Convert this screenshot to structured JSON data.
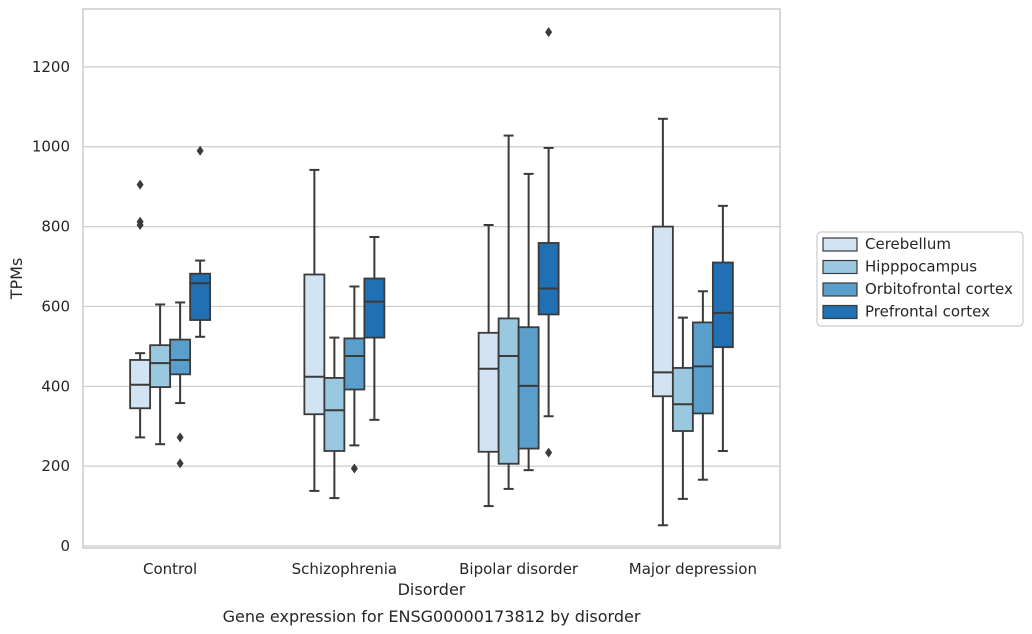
{
  "chart_data": {
    "type": "box",
    "title": "",
    "caption": "Gene expression for ENSG00000173812 by disorder",
    "xlabel": "Disorder",
    "ylabel": "TPMs",
    "ylim": [
      -5,
      1345
    ],
    "yticks": [
      0,
      200,
      400,
      600,
      800,
      1000,
      1200
    ],
    "grid": true,
    "legend_position": "right",
    "categories": [
      "Control",
      "Schizophrenia",
      "Bipolar disorder",
      "Major depression"
    ],
    "series": [
      {
        "name": "Cerebellum",
        "color": "#d2e3f3",
        "boxes": [
          {
            "whisker_low": 272,
            "q1": 345,
            "median": 404,
            "q3": 466,
            "whisker_high": 483,
            "outliers": [
              905,
              812,
              804
            ]
          },
          {
            "whisker_low": 138,
            "q1": 330,
            "median": 424,
            "q3": 680,
            "whisker_high": 942,
            "outliers": []
          },
          {
            "whisker_low": 100,
            "q1": 236,
            "median": 444,
            "q3": 534,
            "whisker_high": 804,
            "outliers": []
          },
          {
            "whisker_low": 52,
            "q1": 375,
            "median": 435,
            "q3": 800,
            "whisker_high": 1070,
            "outliers": []
          }
        ]
      },
      {
        "name": "Hipppocampus",
        "color": "#9ac8e0",
        "boxes": [
          {
            "whisker_low": 255,
            "q1": 398,
            "median": 458,
            "q3": 503,
            "whisker_high": 605,
            "outliers": []
          },
          {
            "whisker_low": 120,
            "q1": 238,
            "median": 340,
            "q3": 421,
            "whisker_high": 522,
            "outliers": []
          },
          {
            "whisker_low": 143,
            "q1": 206,
            "median": 476,
            "q3": 570,
            "whisker_high": 1028,
            "outliers": []
          },
          {
            "whisker_low": 118,
            "q1": 288,
            "median": 355,
            "q3": 446,
            "whisker_high": 572,
            "outliers": []
          }
        ]
      },
      {
        "name": "Orbitofrontal cortex",
        "color": "#5a9ecc",
        "boxes": [
          {
            "whisker_low": 358,
            "q1": 430,
            "median": 466,
            "q3": 517,
            "whisker_high": 610,
            "outliers": [
              272,
              207
            ]
          },
          {
            "whisker_low": 252,
            "q1": 392,
            "median": 476,
            "q3": 520,
            "whisker_high": 650,
            "outliers": [
              194
            ]
          },
          {
            "whisker_low": 190,
            "q1": 244,
            "median": 401,
            "q3": 548,
            "whisker_high": 932,
            "outliers": []
          },
          {
            "whisker_low": 166,
            "q1": 332,
            "median": 450,
            "q3": 560,
            "whisker_high": 638,
            "outliers": []
          }
        ]
      },
      {
        "name": "Prefrontal cortex",
        "color": "#2070b3",
        "boxes": [
          {
            "whisker_low": 524,
            "q1": 566,
            "median": 658,
            "q3": 682,
            "whisker_high": 715,
            "outliers": [
              990
            ]
          },
          {
            "whisker_low": 316,
            "q1": 522,
            "median": 612,
            "q3": 670,
            "whisker_high": 774,
            "outliers": []
          },
          {
            "whisker_low": 325,
            "q1": 580,
            "median": 645,
            "q3": 759,
            "whisker_high": 997,
            "outliers": [
              1287,
              234
            ]
          },
          {
            "whisker_low": 238,
            "q1": 498,
            "median": 584,
            "q3": 710,
            "whisker_high": 852,
            "outliers": []
          }
        ]
      }
    ]
  }
}
